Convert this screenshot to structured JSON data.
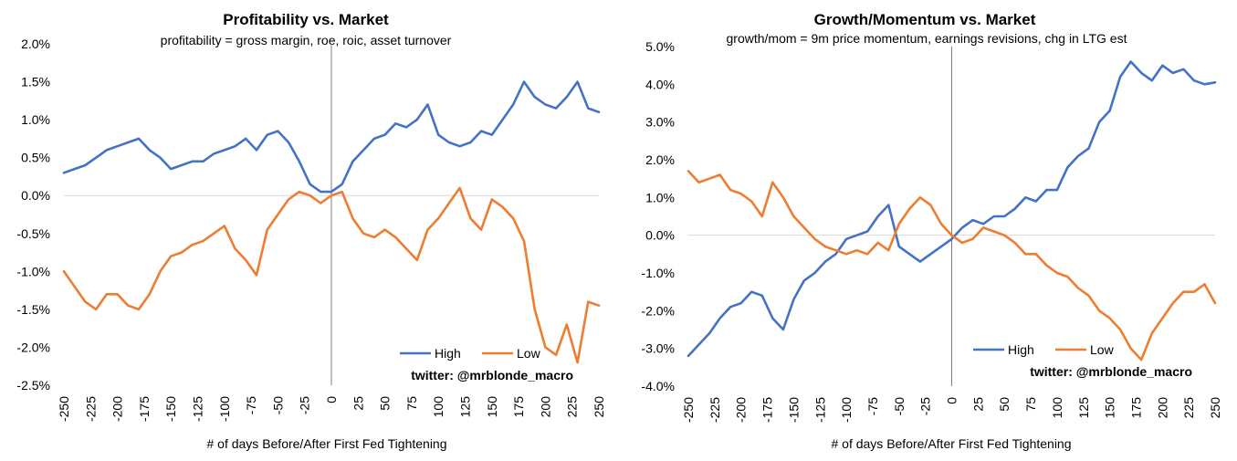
{
  "colors": {
    "High": "#4472C4",
    "Low": "#ED7D31",
    "zero_line": "#d9d9d9",
    "event_line": "#7f7f7f"
  },
  "chart_data": [
    {
      "type": "line",
      "title": "Profitability vs. Market",
      "subtitle": "profitability = gross margin, roe, roic, asset turnover",
      "xlabel": "# of days Before/After First Fed Tightening",
      "ylabel": "",
      "xlim": [
        -250,
        250
      ],
      "ylim": [
        -2.5,
        2.0
      ],
      "x_ticks": [
        -250,
        -225,
        -200,
        -175,
        -150,
        -125,
        -100,
        -75,
        -50,
        -25,
        0,
        25,
        50,
        75,
        100,
        125,
        150,
        175,
        200,
        225,
        250
      ],
      "x_tick_labels": [
        "-250",
        "-225",
        "-200",
        "-175",
        "-150",
        "-125",
        "-100",
        "-75",
        "-50",
        "-25",
        "0",
        "25",
        "50",
        "75",
        "100",
        "125",
        "150",
        "175",
        "200",
        "225",
        "250"
      ],
      "y_ticks": [
        -2.5,
        -2.0,
        -1.5,
        -1.0,
        -0.5,
        0.0,
        0.5,
        1.0,
        1.5,
        2.0
      ],
      "y_tick_labels": [
        "-2.5%",
        "-2.0%",
        "-1.5%",
        "-1.0%",
        "-0.5%",
        "0.0%",
        "0.5%",
        "1.0%",
        "1.5%",
        "2.0%"
      ],
      "event_line_x": 0,
      "legend": {
        "position": "bottom-right",
        "entries": [
          "High",
          "Low"
        ]
      },
      "credit": "twitter: @mrblonde_macro",
      "x": [
        -250,
        -240,
        -230,
        -220,
        -210,
        -200,
        -190,
        -180,
        -170,
        -160,
        -150,
        -140,
        -130,
        -120,
        -110,
        -100,
        -90,
        -80,
        -70,
        -60,
        -50,
        -40,
        -30,
        -20,
        -10,
        0,
        10,
        20,
        30,
        40,
        50,
        60,
        70,
        80,
        90,
        100,
        110,
        120,
        130,
        140,
        150,
        160,
        170,
        180,
        190,
        200,
        210,
        220,
        230,
        240,
        250
      ],
      "series": [
        {
          "name": "High",
          "values": [
            0.3,
            0.35,
            0.4,
            0.5,
            0.6,
            0.65,
            0.7,
            0.75,
            0.6,
            0.5,
            0.35,
            0.4,
            0.45,
            0.45,
            0.55,
            0.6,
            0.65,
            0.75,
            0.6,
            0.8,
            0.85,
            0.7,
            0.45,
            0.15,
            0.05,
            0.05,
            0.15,
            0.45,
            0.6,
            0.75,
            0.8,
            0.95,
            0.9,
            1.0,
            1.2,
            0.8,
            0.7,
            0.65,
            0.7,
            0.85,
            0.8,
            1.0,
            1.2,
            1.5,
            1.3,
            1.2,
            1.15,
            1.3,
            1.5,
            1.15,
            1.1
          ]
        },
        {
          "name": "Low",
          "values": [
            -1.0,
            -1.2,
            -1.4,
            -1.5,
            -1.3,
            -1.3,
            -1.45,
            -1.5,
            -1.3,
            -1.0,
            -0.8,
            -0.75,
            -0.65,
            -0.6,
            -0.5,
            -0.4,
            -0.7,
            -0.85,
            -1.05,
            -0.45,
            -0.25,
            -0.05,
            0.05,
            0.0,
            -0.1,
            0.0,
            0.05,
            -0.3,
            -0.5,
            -0.55,
            -0.45,
            -0.55,
            -0.7,
            -0.85,
            -0.45,
            -0.3,
            -0.1,
            0.1,
            -0.3,
            -0.45,
            -0.05,
            -0.15,
            -0.3,
            -0.6,
            -1.5,
            -2.0,
            -2.1,
            -1.7,
            -2.2,
            -1.4,
            -1.45
          ]
        }
      ]
    },
    {
      "type": "line",
      "title": "Growth/Momentum vs. Market",
      "subtitle": "growth/mom = 9m price momentum, earnings revisions, chg in LTG est",
      "xlabel": "# of days Before/After First Fed Tightening",
      "ylabel": "",
      "xlim": [
        -250,
        250
      ],
      "ylim": [
        -4.0,
        5.0
      ],
      "x_ticks": [
        -250,
        -225,
        -200,
        -175,
        -150,
        -125,
        -100,
        -75,
        -50,
        -25,
        0,
        25,
        50,
        75,
        100,
        125,
        150,
        175,
        200,
        225,
        250
      ],
      "x_tick_labels": [
        "-250",
        "-225",
        "-200",
        "-175",
        "-150",
        "-125",
        "-100",
        "-75",
        "-50",
        "-25",
        "0",
        "25",
        "50",
        "75",
        "100",
        "125",
        "150",
        "175",
        "200",
        "225",
        "250"
      ],
      "y_ticks": [
        -4.0,
        -3.0,
        -2.0,
        -1.0,
        0.0,
        1.0,
        2.0,
        3.0,
        4.0,
        5.0
      ],
      "y_tick_labels": [
        "-4.0%",
        "-3.0%",
        "-2.0%",
        "-1.0%",
        "0.0%",
        "1.0%",
        "2.0%",
        "3.0%",
        "4.0%",
        "5.0%"
      ],
      "event_line_x": 0,
      "legend": {
        "position": "bottom-right",
        "entries": [
          "High",
          "Low"
        ]
      },
      "credit": "twitter: @mrblonde_macro",
      "x": [
        -250,
        -240,
        -230,
        -220,
        -210,
        -200,
        -190,
        -180,
        -170,
        -160,
        -150,
        -140,
        -130,
        -120,
        -110,
        -100,
        -90,
        -80,
        -70,
        -60,
        -50,
        -40,
        -30,
        -20,
        -10,
        0,
        10,
        20,
        30,
        40,
        50,
        60,
        70,
        80,
        90,
        100,
        110,
        120,
        130,
        140,
        150,
        160,
        170,
        180,
        190,
        200,
        210,
        220,
        230,
        240,
        250
      ],
      "series": [
        {
          "name": "High",
          "values": [
            -3.2,
            -2.9,
            -2.6,
            -2.2,
            -1.9,
            -1.8,
            -1.5,
            -1.6,
            -2.2,
            -2.5,
            -1.7,
            -1.2,
            -1.0,
            -0.7,
            -0.5,
            -0.1,
            0.0,
            0.1,
            0.5,
            0.8,
            -0.3,
            -0.5,
            -0.7,
            -0.5,
            -0.3,
            -0.1,
            0.2,
            0.4,
            0.3,
            0.5,
            0.5,
            0.7,
            1.0,
            0.9,
            1.2,
            1.2,
            1.8,
            2.1,
            2.3,
            3.0,
            3.3,
            4.2,
            4.6,
            4.3,
            4.1,
            4.5,
            4.3,
            4.4,
            4.1,
            4.0,
            4.05
          ]
        },
        {
          "name": "Low",
          "values": [
            1.7,
            1.4,
            1.5,
            1.6,
            1.2,
            1.1,
            0.9,
            0.5,
            1.4,
            1.0,
            0.5,
            0.2,
            -0.1,
            -0.3,
            -0.4,
            -0.5,
            -0.4,
            -0.5,
            -0.2,
            -0.4,
            0.3,
            0.7,
            1.0,
            0.8,
            0.3,
            0.0,
            -0.2,
            -0.1,
            0.2,
            0.1,
            0.0,
            -0.2,
            -0.5,
            -0.5,
            -0.8,
            -1.0,
            -1.1,
            -1.4,
            -1.6,
            -2.0,
            -2.2,
            -2.5,
            -3.0,
            -3.3,
            -2.6,
            -2.2,
            -1.8,
            -1.5,
            -1.5,
            -1.3,
            -1.8
          ]
        }
      ]
    }
  ]
}
